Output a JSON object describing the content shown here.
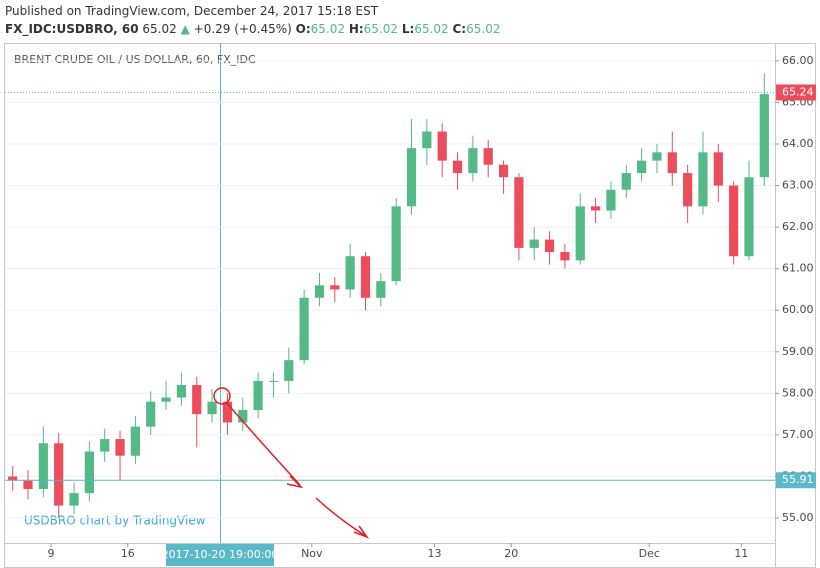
{
  "header": {
    "published": "Published on TradingView.com, December 24, 2017 15:18 EST",
    "symbol": "FX_IDC:USDBRO, 60",
    "last": "65.02",
    "arrow": "▲",
    "change": "+0.29 (+0.45%)",
    "o_label": "O:",
    "o": "65.02",
    "h_label": "H:",
    "h": "65.02",
    "l_label": "L:",
    "l": "65.02",
    "c_label": "C:",
    "c": "65.02"
  },
  "chart_data": {
    "type": "candlestick",
    "title": "BRENT CRUDE OIL / US DOLLAR, 60, FX_IDC",
    "watermark": "USDBRO chart by TradingView",
    "up_color": "#53b987",
    "down_color": "#eb4d5c",
    "categories": [
      null,
      null,
      null,
      "9",
      null,
      null,
      null,
      null,
      "16",
      null,
      null,
      null,
      null,
      null,
      null,
      null,
      null,
      null,
      null,
      null,
      "Nov",
      null,
      null,
      null,
      null,
      null,
      null,
      null,
      "13",
      null,
      null,
      null,
      null,
      "20",
      null,
      null,
      null,
      null,
      null,
      null,
      null,
      null,
      "Dec",
      null,
      null,
      null,
      null,
      null,
      "11",
      null
    ],
    "open": [
      56.0,
      55.9,
      55.7,
      56.8,
      55.3,
      55.6,
      56.6,
      56.9,
      56.5,
      57.2,
      57.8,
      57.9,
      58.2,
      57.5,
      57.8,
      57.3,
      57.6,
      58.3,
      58.3,
      58.8,
      60.3,
      60.6,
      60.5,
      61.3,
      60.3,
      60.7,
      62.5,
      63.9,
      64.3,
      63.6,
      63.3,
      63.9,
      63.5,
      63.2,
      61.5,
      61.7,
      61.4,
      61.2,
      62.5,
      62.4,
      62.9,
      63.3,
      63.6,
      63.8,
      63.3,
      62.5,
      63.8,
      63.0,
      61.3,
      63.2
    ],
    "high": [
      56.25,
      56.15,
      57.2,
      57.05,
      55.85,
      56.85,
      57.15,
      57.1,
      57.45,
      58.05,
      58.3,
      58.5,
      58.4,
      58.1,
      58.0,
      57.9,
      58.5,
      58.5,
      59.1,
      60.5,
      60.9,
      60.8,
      61.6,
      61.4,
      60.9,
      62.7,
      64.6,
      64.6,
      64.5,
      63.8,
      64.2,
      64.1,
      63.6,
      63.3,
      62.0,
      61.9,
      61.6,
      62.8,
      62.7,
      63.1,
      63.5,
      63.9,
      64.0,
      64.3,
      63.5,
      64.3,
      64.0,
      63.1,
      63.6,
      65.7
    ],
    "low": [
      55.65,
      55.45,
      55.5,
      55.0,
      55.1,
      55.4,
      56.35,
      55.9,
      56.3,
      57.0,
      57.6,
      57.7,
      56.7,
      57.3,
      57.0,
      57.1,
      57.4,
      57.9,
      58.0,
      58.7,
      60.1,
      60.2,
      60.3,
      60.0,
      60.1,
      60.6,
      62.3,
      63.5,
      63.2,
      62.9,
      63.1,
      63.2,
      62.8,
      61.2,
      61.2,
      61.1,
      61.0,
      61.1,
      62.1,
      62.2,
      62.7,
      63.1,
      63.3,
      63.0,
      62.1,
      62.3,
      62.6,
      61.1,
      61.2,
      63.0
    ],
    "close": [
      55.9,
      55.7,
      56.8,
      55.3,
      55.6,
      56.6,
      56.9,
      56.5,
      57.2,
      57.8,
      57.9,
      58.2,
      57.5,
      57.8,
      57.3,
      57.6,
      58.3,
      58.3,
      58.8,
      60.3,
      60.6,
      60.5,
      61.3,
      60.3,
      60.7,
      62.5,
      63.9,
      64.3,
      63.6,
      63.3,
      63.9,
      63.5,
      63.2,
      61.5,
      61.7,
      61.4,
      61.2,
      62.5,
      62.4,
      62.9,
      63.3,
      63.6,
      63.8,
      63.3,
      62.5,
      63.8,
      63.0,
      61.3,
      63.2,
      65.2
    ],
    "ylim": [
      54.4,
      66.43
    ],
    "yticks": [
      {
        "value": 55,
        "label": "55.00"
      },
      {
        "value": 56,
        "label": "56.00"
      },
      {
        "value": 57,
        "label": "57.00"
      },
      {
        "value": 58,
        "label": "58.00"
      },
      {
        "value": 59,
        "label": "59.00"
      },
      {
        "value": 60,
        "label": "60.00"
      },
      {
        "value": 61,
        "label": "61.00"
      },
      {
        "value": 62,
        "label": "62.00"
      },
      {
        "value": 63,
        "label": "63.00"
      },
      {
        "value": 64,
        "label": "64.00"
      },
      {
        "value": 65,
        "label": "65.00"
      },
      {
        "value": 66,
        "label": "66.00"
      }
    ],
    "last_price": {
      "value": 65.24,
      "label": "65.24",
      "color": "#eb4d5c"
    },
    "crosshair": {
      "price": 55.91,
      "price_label": "55.91",
      "time_label": "2017-10-20 19:00:00"
    }
  }
}
